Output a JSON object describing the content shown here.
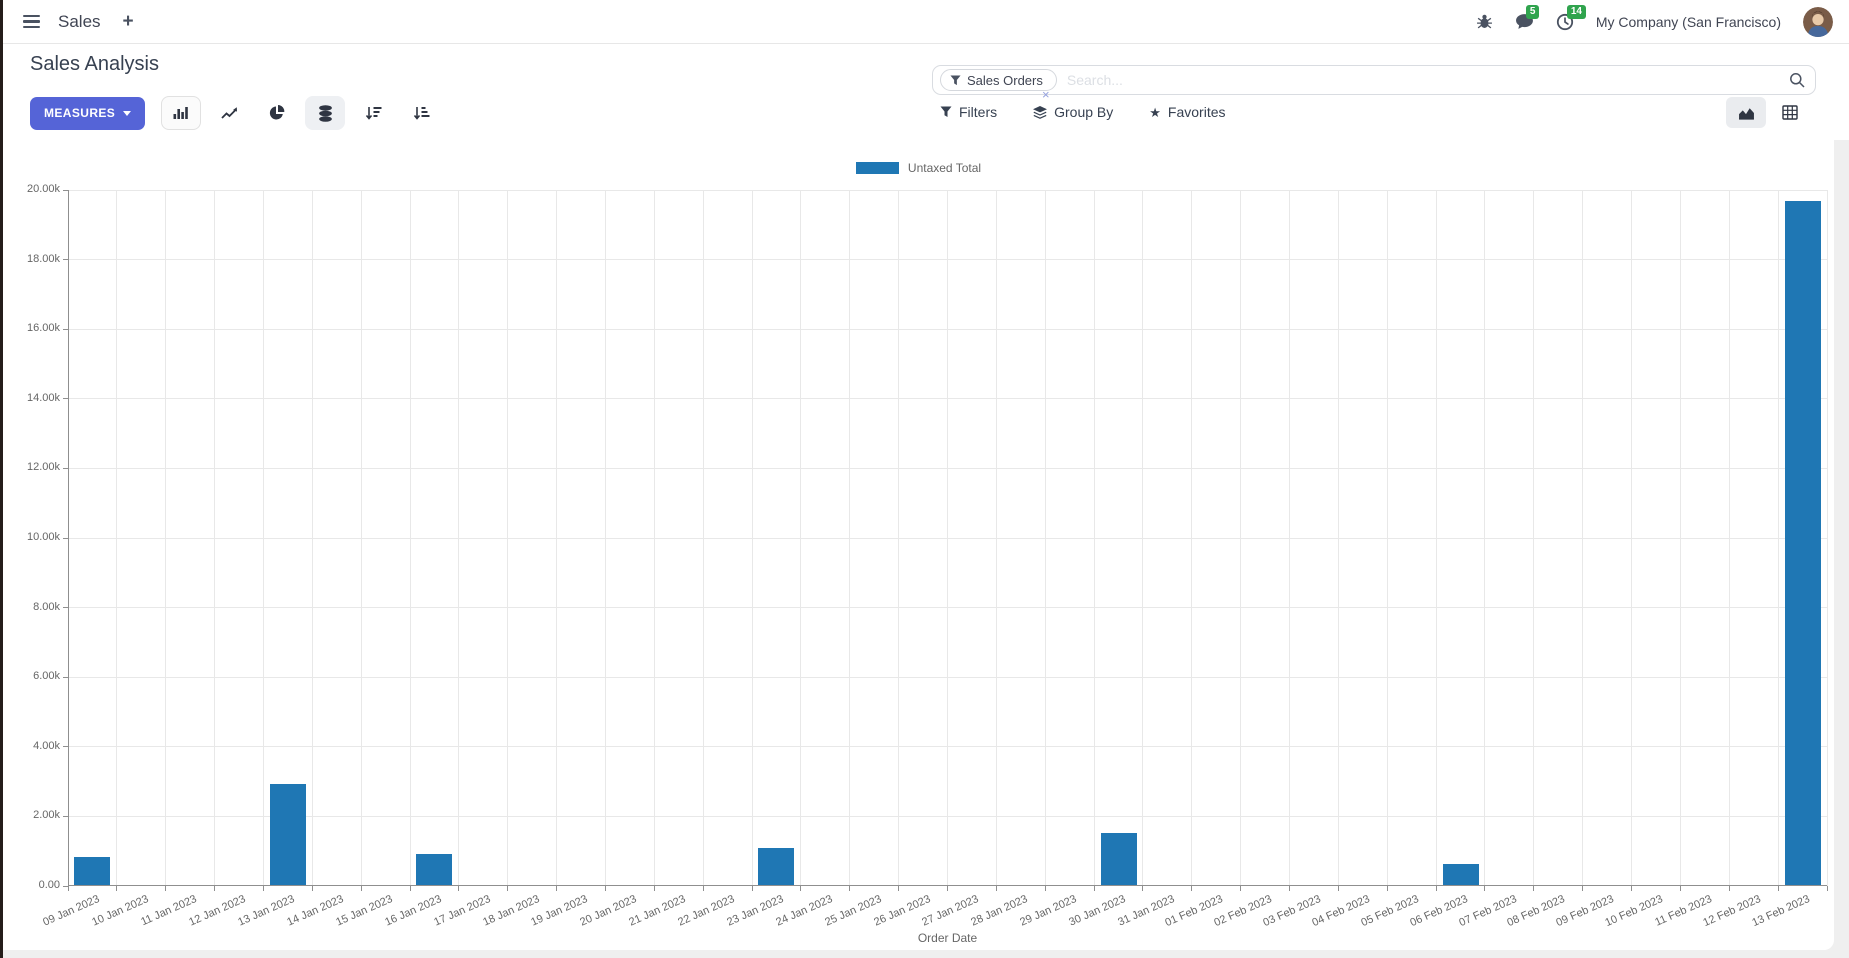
{
  "navbar": {
    "app_menu_label": "Sales",
    "new_tab_label": "+",
    "company_name": "My Company (San Francisco)",
    "messages_badge": "5",
    "activities_badge": "14"
  },
  "control_panel": {
    "title": "Sales Analysis",
    "measures_label": "MEASURES",
    "search_facet": "Sales Orders",
    "search_placeholder": "Search...",
    "facet_remove_glyph": "×",
    "filters_label": "Filters",
    "group_by_label": "Group By",
    "favorites_label": "Favorites",
    "favorites_star_glyph": "★"
  },
  "chart_data": {
    "type": "bar",
    "title": "",
    "legend_position": "top",
    "grid": true,
    "xlabel": "Order Date",
    "ylabel": "",
    "ylim": [
      0,
      20000
    ],
    "ytick_step": 2000,
    "ytick_labels": [
      "0.00",
      "2.00k",
      "4.00k",
      "6.00k",
      "8.00k",
      "10.00k",
      "12.00k",
      "14.00k",
      "16.00k",
      "18.00k",
      "20.00k"
    ],
    "categories": [
      "09 Jan 2023",
      "10 Jan 2023",
      "11 Jan 2023",
      "12 Jan 2023",
      "13 Jan 2023",
      "14 Jan 2023",
      "15 Jan 2023",
      "16 Jan 2023",
      "17 Jan 2023",
      "18 Jan 2023",
      "19 Jan 2023",
      "20 Jan 2023",
      "21 Jan 2023",
      "22 Jan 2023",
      "23 Jan 2023",
      "24 Jan 2023",
      "25 Jan 2023",
      "26 Jan 2023",
      "27 Jan 2023",
      "28 Jan 2023",
      "29 Jan 2023",
      "30 Jan 2023",
      "31 Jan 2023",
      "01 Feb 2023",
      "02 Feb 2023",
      "03 Feb 2023",
      "04 Feb 2023",
      "05 Feb 2023",
      "06 Feb 2023",
      "07 Feb 2023",
      "08 Feb 2023",
      "09 Feb 2023",
      "10 Feb 2023",
      "11 Feb 2023",
      "12 Feb 2023",
      "13 Feb 2023"
    ],
    "series": [
      {
        "name": "Untaxed Total",
        "color": "#1f77b4",
        "values": [
          800,
          0,
          0,
          0,
          2900,
          0,
          0,
          900,
          0,
          0,
          0,
          0,
          0,
          0,
          1050,
          0,
          0,
          0,
          0,
          0,
          0,
          1500,
          0,
          0,
          0,
          0,
          0,
          0,
          600,
          0,
          0,
          0,
          0,
          0,
          0,
          19650
        ]
      }
    ]
  },
  "colors": {
    "accent": "#5564d7",
    "bar_blue": "#1f77b4",
    "badge_green": "#30a44e"
  }
}
